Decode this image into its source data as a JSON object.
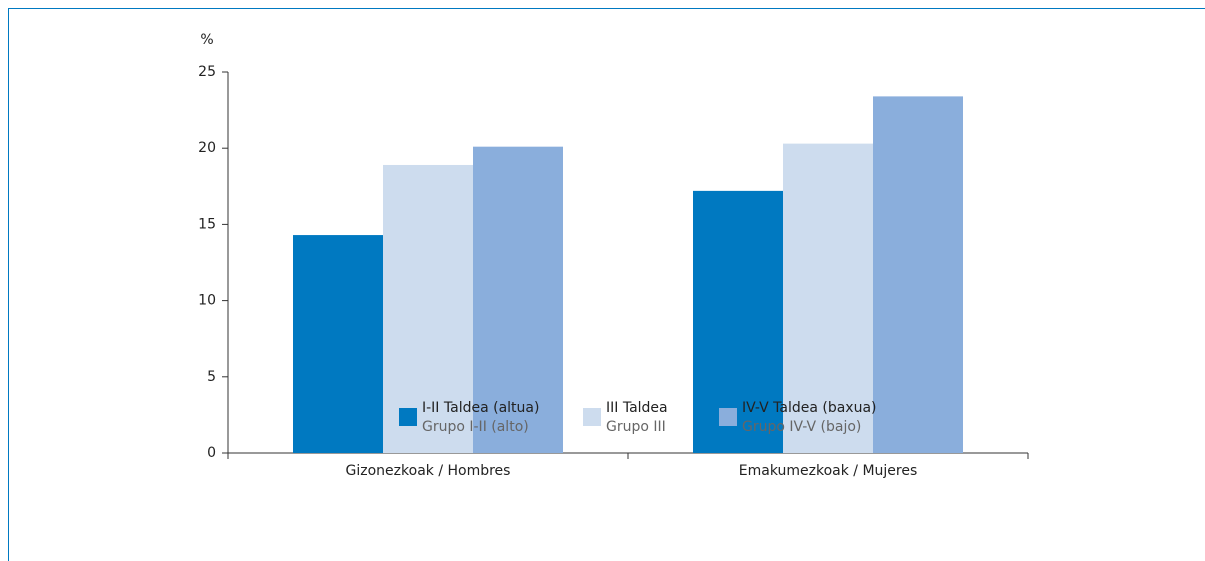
{
  "chart_data": {
    "type": "bar",
    "y_label": "%",
    "categories": [
      "Gizonezkoak / Hombres",
      "Emakumezkoak / Mujeres"
    ],
    "series": [
      {
        "name": [
          "I-II Taldea (altua)",
          "Grupo I-II (alto)"
        ],
        "color": "#0079c1",
        "values": [
          14.3,
          17.2
        ]
      },
      {
        "name": [
          "III Taldea",
          "Grupo III"
        ],
        "color": "#cddcee",
        "values": [
          18.9,
          20.3
        ]
      },
      {
        "name": [
          "IV-V Taldea (baxua)",
          "Grupo IV-V (bajo)"
        ],
        "color": "#8aaedc",
        "values": [
          20.1,
          23.4
        ]
      }
    ],
    "ylim": [
      0,
      25
    ],
    "yticks": [
      0,
      5,
      10,
      15,
      20,
      25
    ],
    "grid": false
  }
}
